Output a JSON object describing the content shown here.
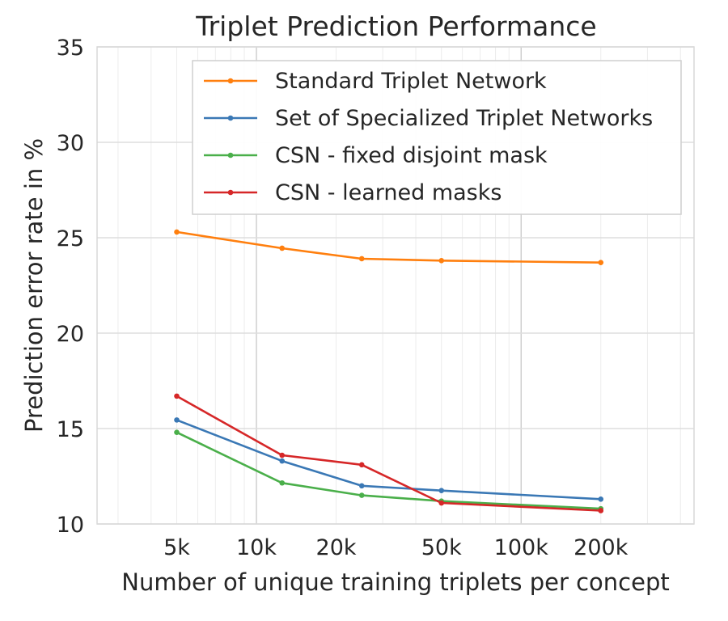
{
  "chart_data": {
    "type": "line",
    "title": "Triplet Prediction Performance",
    "xlabel": "Number of unique training triplets per concept",
    "ylabel": "Prediction error rate in %",
    "x_scale": "log",
    "xlim": [
      2500,
      450000
    ],
    "ylim": [
      10,
      35
    ],
    "yticks": [
      10,
      15,
      20,
      25,
      30,
      35
    ],
    "xticks": [
      {
        "value": 5000,
        "label": "5k"
      },
      {
        "value": 10000,
        "label": "10k"
      },
      {
        "value": 20000,
        "label": "20k"
      },
      {
        "value": 50000,
        "label": "50k"
      },
      {
        "value": 100000,
        "label": "100k"
      },
      {
        "value": 200000,
        "label": "200k"
      }
    ],
    "x": [
      5000,
      12500,
      25000,
      50000,
      200000
    ],
    "grid": true,
    "legend_position": "top-right",
    "series": [
      {
        "name": "Standard Triplet Network",
        "color": "#ff7f0e",
        "values": [
          25.3,
          24.45,
          23.9,
          23.8,
          23.7
        ]
      },
      {
        "name": "Set of Specialized Triplet Networks",
        "color": "#3a78b5",
        "values": [
          15.45,
          13.3,
          12.0,
          11.75,
          11.3
        ]
      },
      {
        "name": "CSN - fixed disjoint mask",
        "color": "#4aaf4a",
        "values": [
          14.8,
          12.15,
          11.5,
          11.2,
          10.8
        ]
      },
      {
        "name": "CSN - learned masks",
        "color": "#d62728",
        "values": [
          16.7,
          13.6,
          13.1,
          11.1,
          10.7
        ]
      }
    ]
  }
}
